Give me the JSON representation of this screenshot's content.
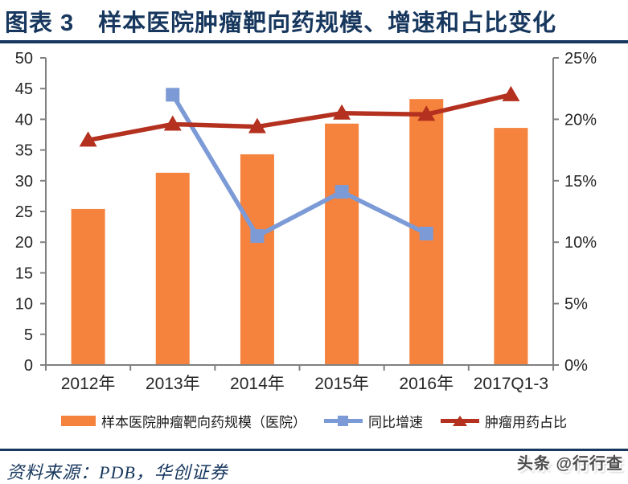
{
  "header": {
    "title": "图表 3　样本医院肿瘤靶向药规模、增速和占比变化"
  },
  "colors": {
    "navy": "#17375E",
    "axis_gray": "#808080",
    "text_dark": "#262626",
    "legend_text": "#1A1A1A",
    "watermark_gray": "#4D4D4D",
    "background": "#FFFFFF"
  },
  "chart_data": {
    "type": "bar+line combo",
    "categories": [
      "2012年",
      "2013年",
      "2014年",
      "2015年",
      "2016年",
      "2017Q1-3"
    ],
    "series": [
      {
        "name": "样本医院肿瘤靶向药规模（医院）",
        "type": "bar",
        "axis": "left",
        "color": "#F5823D",
        "values": [
          25.4,
          31.3,
          34.3,
          39.3,
          43.3,
          38.6
        ]
      },
      {
        "name": "同比增速",
        "type": "line",
        "marker": "square",
        "axis": "right",
        "color": "#7C9AD6",
        "values": [
          null,
          22.0,
          10.5,
          14.1,
          10.7,
          null
        ]
      },
      {
        "name": "肿瘤用药占比",
        "type": "line",
        "marker": "triangle",
        "axis": "right",
        "color": "#B4301F",
        "values": [
          18.3,
          19.6,
          19.4,
          20.5,
          20.4,
          22.0
        ]
      }
    ],
    "left_axis": {
      "min": 0,
      "max": 50,
      "step": 5,
      "tick_labels": [
        "0",
        "5",
        "10",
        "15",
        "20",
        "25",
        "30",
        "35",
        "40",
        "45",
        "50"
      ]
    },
    "right_axis": {
      "min": 0,
      "max": 25,
      "step": 5,
      "tick_labels": [
        "0%",
        "5%",
        "10%",
        "15%",
        "20%",
        "25%"
      ]
    },
    "grid": false,
    "legend_position": "bottom"
  },
  "legend": {
    "items": [
      {
        "label": "样本医院肿瘤靶向药规模（医院）",
        "swatch": "bar"
      },
      {
        "label": "同比增速",
        "swatch": "line-square"
      },
      {
        "label": "肿瘤用药占比",
        "swatch": "line-triangle"
      }
    ]
  },
  "footer": {
    "source": "资料来源：PDB，华创证券",
    "watermark": "头条 @行行查"
  }
}
